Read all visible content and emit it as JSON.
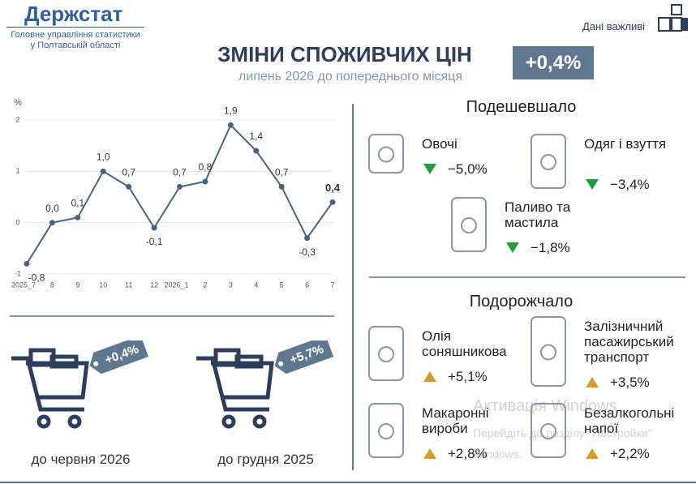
{
  "header": {
    "logo": "Держстат",
    "org_line1": "Головне управління статистики",
    "org_line2": "у Полтавській області",
    "important": "Дані важливі"
  },
  "title": "ЗМІНИ СПОЖИВЧИХ ЦІН",
  "subtitle": "липень 2026 до попереднього місяця",
  "headline": "+0,4%",
  "chart_data": {
    "type": "line",
    "y_label": "%",
    "categories": [
      "2025_7",
      "8",
      "9",
      "10",
      "11",
      "12",
      "2026_1",
      "2",
      "3",
      "4",
      "5",
      "6",
      "7"
    ],
    "values": [
      -0.8,
      0,
      0.1,
      1,
      0.7,
      -0.1,
      0.7,
      0.8,
      1.9,
      1.4,
      0.7,
      -0.3,
      0.4
    ],
    "value_labels": [
      "-0,8",
      "0,0",
      "0,1",
      "1,0",
      "0,7",
      "-0,1",
      "0,7",
      "0,8",
      "1,9",
      "1,4",
      "0,7",
      "-0,3",
      "0,4"
    ],
    "color": "#4a6382",
    "ylim": [
      -1,
      2
    ],
    "yticks": [
      -1,
      0,
      1,
      2
    ],
    "grid": true
  },
  "baskets": [
    {
      "label": "+0,4%",
      "caption": "до червня 2026"
    },
    {
      "label": "+5,7%",
      "caption": "до грудня 2025"
    }
  ],
  "cheaper": {
    "title": "Подешевшало",
    "items": [
      {
        "name": "Овочі",
        "change": "−5,0%"
      },
      {
        "name": "Одяг і взуття",
        "change": "−3,4%"
      },
      {
        "name": "Паливо та мастила",
        "change": "−1,8%"
      }
    ]
  },
  "pricier": {
    "title": "Подорожчало",
    "items": [
      {
        "name": "Олія соняшникова",
        "change": "+5,1%"
      },
      {
        "name": "Залізничний пасажирський транспорт",
        "change": "+3,5%"
      },
      {
        "name": "Макаронні вироби",
        "change": "+2,8%"
      },
      {
        "name": "Безалкогольні напої",
        "change": "+2,2%"
      }
    ]
  },
  "watermark": {
    "title": "Активація Windows",
    "line1": "Перейдіть до розділу \"Настройки\"",
    "line2": "Windows."
  }
}
